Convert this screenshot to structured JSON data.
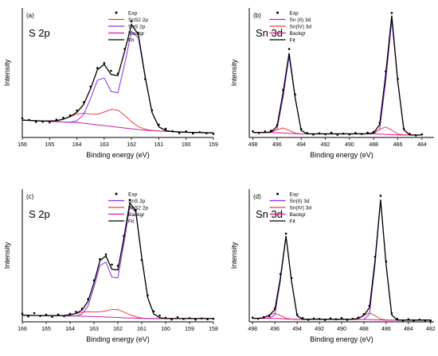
{
  "chart_data": [
    {
      "type": "line",
      "panel_label": "(a)",
      "title": "S 2p",
      "x_label": "Binding energy (eV)",
      "y_label": "Intensity",
      "x": [
        166,
        165.75,
        165.5,
        165.25,
        165,
        164.75,
        164.5,
        164.25,
        164,
        163.75,
        163.5,
        163.25,
        163,
        162.75,
        162.5,
        162.25,
        162,
        161.75,
        161.5,
        161.25,
        161,
        160.75,
        160.5,
        160.25,
        160,
        159.75,
        159.5,
        159.25,
        159
      ],
      "xlim": [
        166,
        159
      ],
      "xticks": [
        166,
        165,
        164,
        163,
        162,
        161,
        160,
        159
      ],
      "ylim": [
        -2,
        80
      ],
      "legend": "upper center",
      "series": [
        {
          "name": "Exp",
          "style": "markers",
          "color": "#000000",
          "values": [
            10.2,
            9.1,
            7.9,
            8.0,
            7.6,
            9.3,
            10.5,
            12.0,
            15.1,
            20.3,
            30.2,
            42.0,
            45.1,
            40.2,
            38.5,
            54.0,
            71.5,
            64.0,
            35.0,
            15.2,
            6.1,
            3.5,
            2.0,
            0.8,
            1.9,
            0.5,
            1.4,
            0.7,
            0.3
          ]
        },
        {
          "name": "SnS2 2p",
          "style": "line",
          "color": "#f03c3c",
          "values": [
            9,
            8.8,
            8.6,
            8.4,
            8.4,
            8.6,
            9.6,
            11.2,
            12.8,
            13.4,
            12.8,
            12.7,
            14.1,
            15.8,
            15.3,
            12.1,
            8,
            4.9,
            3.2,
            2.4,
            2.1,
            1.9,
            1.7,
            1.5,
            1.3,
            1.2,
            1.1,
            1.0,
            0.9
          ]
        },
        {
          "name": "SnS 2p",
          "style": "line",
          "color": "#8c2ee6",
          "values": [
            9,
            8.8,
            8.6,
            8.4,
            8.2,
            8,
            7.8,
            7.6,
            8.6,
            12.6,
            22.6,
            34.2,
            35.7,
            27.1,
            26.3,
            44.6,
            65.1,
            61.2,
            35.9,
            13.8,
            4.7,
            2.4,
            1.7,
            1.5,
            1.3,
            1.2,
            1.1,
            1.0,
            0.9
          ]
        },
        {
          "name": "Backgr",
          "style": "line",
          "color": "#c21fa8",
          "values": [
            9,
            8.8,
            8.6,
            8.4,
            8.2,
            8,
            7.8,
            7.6,
            7.4,
            7,
            6.5,
            6,
            5.5,
            5,
            4.5,
            4,
            3.5,
            3,
            2.6,
            2.3,
            2.1,
            1.9,
            1.7,
            1.5,
            1.3,
            1.2,
            1.1,
            1.0,
            0.9
          ]
        },
        {
          "name": "Fit",
          "style": "line",
          "color": "#000000",
          "values": [
            9,
            8.8,
            8.6,
            8.4,
            8.4,
            8.6,
            9.6,
            11.2,
            14.0,
            19.0,
            28.9,
            40.9,
            44.3,
            37.9,
            37.1,
            52.7,
            69.6,
            63.1,
            36.5,
            13.9,
            4.7,
            2.4,
            1.7,
            1.5,
            1.3,
            1.2,
            1.1,
            1.0,
            0.9
          ]
        }
      ]
    },
    {
      "type": "line",
      "panel_label": "(b)",
      "title": "Sn 3d",
      "x_label": "Binding energy (eV)",
      "y_label": "Intensity",
      "x": [
        498,
        497.5,
        497,
        496.5,
        496,
        495.5,
        495,
        494.5,
        494,
        493.5,
        493,
        492.5,
        492,
        491.5,
        491,
        490.5,
        490,
        489.5,
        489,
        488.5,
        488,
        487.5,
        487,
        486.5,
        486,
        485.5,
        485,
        484.5,
        484
      ],
      "xlim": [
        498.3,
        483
      ],
      "xticks": [
        498,
        496,
        494,
        492,
        490,
        488,
        486,
        484
      ],
      "ylim": [
        0,
        104
      ],
      "legend": "upper left",
      "series": [
        {
          "name": "Exp",
          "style": "markers",
          "color": "#000000",
          "values": [
            5.0,
            3.6,
            4.8,
            5.5,
            9.8,
            38.0,
            71.0,
            34.5,
            6.8,
            3.5,
            2.4,
            3.3,
            2.6,
            3.8,
            2.2,
            3.1,
            2.5,
            3.6,
            2.8,
            3.9,
            4.5,
            11.8,
            53.0,
            100,
            47.0,
            7.0,
            2.8,
            1.6,
            2.5
          ]
        },
        {
          "name": "Sn (II) 3d",
          "style": "line",
          "color": "#8c2ee6",
          "values": [
            4,
            4,
            4,
            4,
            6.5,
            32.1,
            65.3,
            31.5,
            5.6,
            2.9,
            2.9,
            2.9,
            2.9,
            2.9,
            2.9,
            2.9,
            2.9,
            2.9,
            2.9,
            2.9,
            2.9,
            6.7,
            44.8,
            94.2,
            44.3,
            6,
            2,
            2,
            2
          ]
        },
        {
          "name": "Sn(IV) 3d",
          "style": "line",
          "color": "#f03c3c",
          "values": [
            4,
            4,
            4,
            4.5,
            6.2,
            7.6,
            5.7,
            3.5,
            2.9,
            2.9,
            2.9,
            2.9,
            2.9,
            2.9,
            2.9,
            2.9,
            2.9,
            2.9,
            2.9,
            3.0,
            3.7,
            6.4,
            8.5,
            5.9,
            2.8,
            2.1,
            2,
            2,
            2
          ]
        },
        {
          "name": "Backgr",
          "style": "line",
          "color": "#e0149c",
          "values": [
            4,
            4,
            4,
            4,
            3.8,
            3.6,
            3.3,
            3.0,
            2.9,
            2.9,
            2.9,
            2.9,
            2.9,
            2.9,
            2.9,
            2.9,
            2.9,
            2.9,
            2.9,
            2.9,
            2.9,
            2.7,
            2.5,
            2.2,
            2,
            2,
            2,
            2,
            2
          ]
        },
        {
          "name": "Fit",
          "style": "line",
          "color": "#000000",
          "values": [
            4,
            4,
            4,
            4.5,
            8.9,
            36.1,
            67.7,
            32,
            5.6,
            2.9,
            2.9,
            2.9,
            2.9,
            2.9,
            2.9,
            2.9,
            2.9,
            2.9,
            2.9,
            3.0,
            3.7,
            10.4,
            50.8,
            97.9,
            45.1,
            6.1,
            2,
            2,
            2
          ]
        }
      ]
    },
    {
      "type": "line",
      "panel_label": "(c)",
      "title": "S 2p",
      "x_label": "Binding energy (eV)",
      "y_label": "Intensity",
      "x": [
        166,
        165.75,
        165.5,
        165.25,
        165,
        164.75,
        164.5,
        164.25,
        164,
        163.75,
        163.5,
        163.25,
        163,
        162.75,
        162.5,
        162.25,
        162,
        161.75,
        161.5,
        161.25,
        161,
        160.75,
        160.5,
        160.25,
        160,
        159.75,
        159.5,
        159.25,
        159,
        158.75,
        158.5,
        158.25,
        158
      ],
      "xlim": [
        166,
        158
      ],
      "xticks": [
        166,
        165,
        164,
        163,
        162,
        161,
        160,
        159,
        158
      ],
      "ylim": [
        -1,
        72
      ],
      "legend": "upper center",
      "series": [
        {
          "name": "Exp",
          "style": "markers",
          "color": "#000000",
          "values": [
            3.5,
            2.0,
            3.8,
            2.2,
            2.9,
            1.8,
            3.0,
            2.1,
            3.4,
            4.5,
            6.2,
            11.5,
            21.8,
            33.5,
            36.0,
            30.5,
            29.8,
            46.2,
            66.0,
            60.5,
            33.0,
            13.5,
            4.8,
            2.5,
            1.2,
            0.3,
            1.5,
            0.6,
            1.0,
            0.2,
            0.9,
            0.4,
            0.7
          ]
        },
        {
          "name": "SnS 2p",
          "style": "line",
          "color": "#8c2ee6",
          "values": [
            2.6,
            2.6,
            2.5,
            2.5,
            2.4,
            2.4,
            2.3,
            2.3,
            2.2,
            2.2,
            3.3,
            7.6,
            18,
            30,
            31.8,
            23.6,
            23.2,
            41.8,
            62.7,
            59.2,
            34.2,
            12.3,
            3.4,
            1.3,
            0.8,
            0.8,
            0.8,
            0.8,
            0.8,
            0.8,
            0.8,
            0.8,
            0.8
          ]
        },
        {
          "name": "SnS2 2p",
          "style": "line",
          "color": "#f03c3c",
          "values": [
            2.6,
            2.6,
            2.5,
            2.5,
            2.4,
            2.4,
            2.4,
            2.5,
            2.9,
            3.6,
            4.3,
            4.6,
            4.4,
            4.5,
            5.0,
            5.8,
            5.7,
            4.4,
            2.9,
            1.8,
            1.1,
            0.8,
            0.8,
            0.8,
            0.8,
            0.8,
            0.8,
            0.8,
            0.8,
            0.8,
            0.8,
            0.8,
            0.8
          ]
        },
        {
          "name": "Backgr",
          "style": "line",
          "color": "#c21fa8",
          "values": [
            2.6,
            2.6,
            2.5,
            2.5,
            2.4,
            2.4,
            2.3,
            2.3,
            2.2,
            2.2,
            2.1,
            2,
            1.9,
            1.8,
            1.6,
            1.5,
            1.4,
            1.2,
            1.1,
            1,
            0.9,
            0.8,
            0.8,
            0.8,
            0.8,
            0.8,
            0.8,
            0.8,
            0.8,
            0.8,
            0.8,
            0.8,
            0.8
          ]
        },
        {
          "name": "Fit",
          "style": "line",
          "color": "#000000",
          "values": [
            2.6,
            2.6,
            2.5,
            2.5,
            2.4,
            2.4,
            2.4,
            2.5,
            2.9,
            3.6,
            5.5,
            10.2,
            20.5,
            32.7,
            35.2,
            27.9,
            27.5,
            45,
            64.5,
            60,
            34.4,
            12.3,
            3.4,
            1.3,
            0.8,
            0.8,
            0.8,
            0.8,
            0.8,
            0.8,
            0.8,
            0.8,
            0.8
          ]
        }
      ]
    },
    {
      "type": "line",
      "panel_label": "(d)",
      "title": "Sn 3d",
      "x_label": "Binding energy (eV)",
      "y_label": "Intensity",
      "x": [
        498,
        497.5,
        497,
        496.5,
        496,
        495.5,
        495,
        494.5,
        494,
        493.5,
        493,
        492.5,
        492,
        491.5,
        491,
        490.5,
        490,
        489.5,
        489,
        488.5,
        488,
        487.5,
        487,
        486.5,
        486,
        485.5,
        485,
        484.5,
        484,
        483.5,
        483,
        482.5,
        482
      ],
      "xlim": [
        498.3,
        481.7
      ],
      "xticks": [
        498,
        496,
        494,
        492,
        490,
        488,
        486,
        484,
        482
      ],
      "ylim": [
        0,
        100
      ],
      "legend": "upper left",
      "series": [
        {
          "name": "Exp",
          "style": "markers",
          "color": "#000000",
          "values": [
            3.2,
            2.4,
            3.6,
            4.2,
            10.0,
            36.0,
            66.5,
            33.0,
            5.5,
            2.8,
            1.6,
            2.5,
            2.2,
            1.4,
            2.6,
            1.9,
            2.9,
            1.5,
            2.3,
            3.3,
            5.8,
            12.0,
            49.0,
            95.0,
            45.5,
            6.5,
            2.2,
            1.0,
            1.9,
            0.8,
            1.6,
            1.1,
            0.9
          ]
        },
        {
          "name": "Sn(II) 3d",
          "style": "line",
          "color": "#8c2ee6",
          "values": [
            2.6,
            2.6,
            2.6,
            2.6,
            5.2,
            30.9,
            64.2,
            30.5,
            4.6,
            1.9,
            1.9,
            1.9,
            1.9,
            1.9,
            1.9,
            1.9,
            1.9,
            1.9,
            1.9,
            1.9,
            1.8,
            5.6,
            43,
            91.4,
            42.7,
            5.2,
            1.3,
            1.3,
            1.3,
            1.3,
            1.3,
            1.3,
            1.3
          ]
        },
        {
          "name": "Sn(IV) 3d",
          "style": "line",
          "color": "#f03c3c",
          "values": [
            2.6,
            2.6,
            3.1,
            5.0,
            6.5,
            4.8,
            2.7,
            2.0,
            1.9,
            1.9,
            1.9,
            1.9,
            1.9,
            1.9,
            1.9,
            1.9,
            1.9,
            1.9,
            1.9,
            2.6,
            4.9,
            6.7,
            4.7,
            2.1,
            1.4,
            1.3,
            1.3,
            1.3,
            1.3,
            1.3,
            1.3,
            1.3,
            1.3
          ]
        },
        {
          "name": "Backgr",
          "style": "line",
          "color": "#e0149c",
          "values": [
            2.6,
            2.6,
            2.6,
            2.6,
            2.5,
            2.4,
            2.2,
            2.0,
            1.9,
            1.9,
            1.9,
            1.9,
            1.9,
            1.9,
            1.9,
            1.9,
            1.9,
            1.9,
            1.9,
            1.9,
            1.8,
            1.7,
            1.6,
            1.4,
            1.3,
            1.3,
            1.3,
            1.3,
            1.3,
            1.3,
            1.3,
            1.3,
            1.3
          ]
        },
        {
          "name": "Fit",
          "style": "line",
          "color": "#000000",
          "values": [
            2.6,
            2.6,
            3.1,
            5.0,
            9.2,
            33.3,
            64.7,
            30.5,
            4.6,
            1.9,
            1.9,
            1.9,
            1.9,
            1.9,
            1.9,
            1.9,
            1.9,
            1.9,
            1.9,
            2.6,
            4.9,
            10.6,
            46.1,
            92.1,
            42.7,
            5.2,
            1.3,
            1.3,
            1.3,
            1.3,
            1.3,
            1.3,
            1.3
          ]
        }
      ]
    }
  ]
}
